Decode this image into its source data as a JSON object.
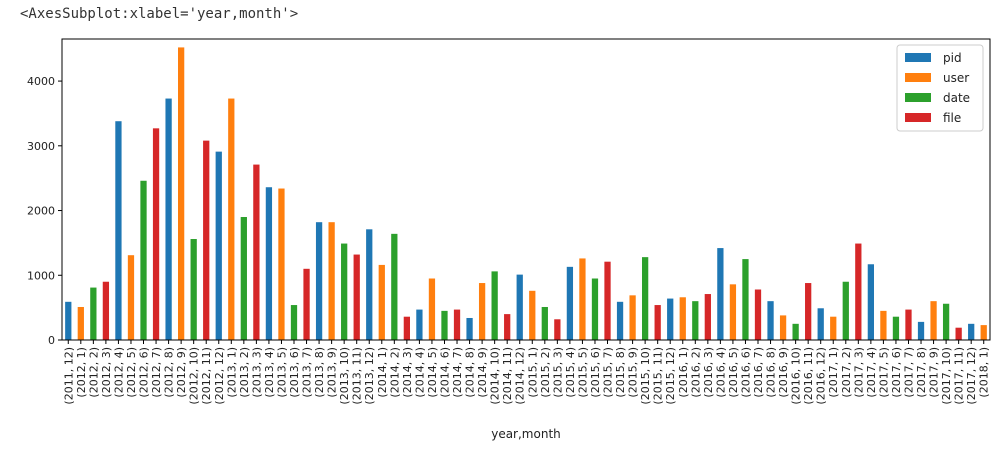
{
  "output": {
    "repr": "<AxesSubplot:xlabel='year,month'>"
  },
  "chart_data": {
    "type": "bar",
    "title": "",
    "xlabel": "year,month",
    "ylabel": "",
    "ylim": [
      0,
      4650
    ],
    "yticks": [
      0,
      1000,
      2000,
      3000,
      4000
    ],
    "grid": false,
    "legend_placement": "top-right",
    "categories": [
      "(2011, 12)",
      "(2012, 1)",
      "(2012, 2)",
      "(2012, 3)",
      "(2012, 4)",
      "(2012, 5)",
      "(2012, 6)",
      "(2012, 7)",
      "(2012, 8)",
      "(2012, 9)",
      "(2012, 10)",
      "(2012, 11)",
      "(2012, 12)",
      "(2013, 1)",
      "(2013, 2)",
      "(2013, 3)",
      "(2013, 4)",
      "(2013, 5)",
      "(2013, 6)",
      "(2013, 7)",
      "(2013, 8)",
      "(2013, 9)",
      "(2013, 10)",
      "(2013, 11)",
      "(2013, 12)",
      "(2014, 1)",
      "(2014, 2)",
      "(2014, 3)",
      "(2014, 4)",
      "(2014, 5)",
      "(2014, 6)",
      "(2014, 7)",
      "(2014, 8)",
      "(2014, 9)",
      "(2014, 10)",
      "(2014, 11)",
      "(2014, 12)",
      "(2015, 1)",
      "(2015, 2)",
      "(2015, 3)",
      "(2015, 4)",
      "(2015, 5)",
      "(2015, 6)",
      "(2015, 7)",
      "(2015, 8)",
      "(2015, 9)",
      "(2015, 10)",
      "(2015, 11)",
      "(2015, 12)",
      "(2016, 1)",
      "(2016, 2)",
      "(2016, 3)",
      "(2016, 4)",
      "(2016, 5)",
      "(2016, 6)",
      "(2016, 7)",
      "(2016, 8)",
      "(2016, 9)",
      "(2016, 10)",
      "(2016, 11)",
      "(2016, 12)",
      "(2017, 1)",
      "(2017, 2)",
      "(2017, 3)",
      "(2017, 4)",
      "(2017, 5)",
      "(2017, 6)",
      "(2017, 7)",
      "(2017, 8)",
      "(2017, 9)",
      "(2017, 10)",
      "(2017, 11)",
      "(2017, 12)",
      "(2018, 1)"
    ],
    "values": [
      590,
      510,
      810,
      900,
      3380,
      1310,
      2460,
      3270,
      3730,
      4520,
      1560,
      3080,
      2910,
      3730,
      1900,
      2710,
      2360,
      2340,
      540,
      1100,
      1820,
      1820,
      1490,
      1320,
      1710,
      1160,
      1640,
      360,
      470,
      950,
      450,
      470,
      340,
      880,
      1060,
      400,
      1010,
      760,
      510,
      320,
      1130,
      1260,
      950,
      1210,
      590,
      690,
      1280,
      540,
      640,
      660,
      600,
      710,
      1420,
      860,
      1250,
      780,
      600,
      380,
      250,
      880,
      490,
      360,
      900,
      1490,
      1170,
      450,
      360,
      470,
      280,
      600,
      560,
      190,
      250,
      230
    ],
    "series": [
      {
        "name": "pid",
        "color": "#1f77b4"
      },
      {
        "name": "user",
        "color": "#ff7f0e"
      },
      {
        "name": "date",
        "color": "#2ca02c"
      },
      {
        "name": "file",
        "color": "#d62728"
      }
    ]
  }
}
